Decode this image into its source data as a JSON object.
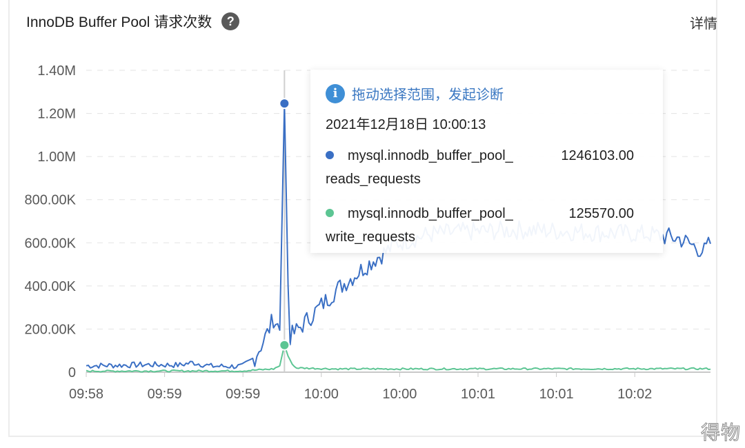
{
  "panel": {
    "title": "InnoDB Buffer Pool 请求次数",
    "help_icon": "question-circle-icon",
    "detail_link": "详情"
  },
  "tooltip": {
    "hint_icon": "info-circle-icon",
    "hint": "拖动选择范围，发起诊断",
    "time": "2021年12月18日 10:00:13",
    "rows": [
      {
        "name_line1": "mysql.innodb_buffer_pool_",
        "name_line2": "reads_requests",
        "value": "1246103.00",
        "color": "#3a6fc4"
      },
      {
        "name_line1": "mysql.innodb_buffer_pool_",
        "name_line2": "write_requests",
        "value": "125570.00",
        "color": "#5cc593"
      }
    ]
  },
  "watermark": "得物",
  "chart_data": {
    "type": "line",
    "title": "InnoDB Buffer Pool 请求次数",
    "xlabel": "",
    "ylabel": "",
    "ylim": [
      0,
      1400000
    ],
    "yticks": [
      "0",
      "200.00K",
      "400.00K",
      "600.00K",
      "800.00K",
      "1.00M",
      "1.20M",
      "1.40M"
    ],
    "ytick_values": [
      0,
      200000,
      400000,
      600000,
      800000,
      1000000,
      1200000,
      1400000
    ],
    "xticks": [
      "09:58",
      "09:59",
      "09:59",
      "10:00",
      "10:00",
      "10:01",
      "10:01",
      "10:02"
    ],
    "grid": "horizontal dashed",
    "legend": "none (tooltip shown)",
    "hover_index": 0.3175,
    "series": [
      {
        "name": "mysql.innodb_buffer_pool_reads_requests",
        "color": "#3a6fc4",
        "keypoints": [
          [
            0.0,
            30000
          ],
          [
            0.05,
            32000
          ],
          [
            0.1,
            35000
          ],
          [
            0.15,
            33000
          ],
          [
            0.17,
            45000
          ],
          [
            0.2,
            28000
          ],
          [
            0.25,
            27000
          ],
          [
            0.27,
            70000
          ],
          [
            0.29,
            180000
          ],
          [
            0.3,
            250000
          ],
          [
            0.31,
            200000
          ],
          [
            0.3175,
            1246103
          ],
          [
            0.325,
            160000
          ],
          [
            0.34,
            200000
          ],
          [
            0.36,
            260000
          ],
          [
            0.4,
            380000
          ],
          [
            0.43,
            450000
          ],
          [
            0.46,
            520000
          ],
          [
            0.5,
            600000
          ],
          [
            0.55,
            640000
          ],
          [
            0.6,
            650000
          ],
          [
            0.7,
            660000
          ],
          [
            0.8,
            650000
          ],
          [
            0.9,
            640000
          ],
          [
            0.95,
            620000
          ],
          [
            0.99,
            560000
          ],
          [
            1.0,
            600000
          ]
        ],
        "noise": 45000
      },
      {
        "name": "mysql.innodb_buffer_pool_write_requests",
        "color": "#5cc593",
        "keypoints": [
          [
            0.0,
            5000
          ],
          [
            0.25,
            6000
          ],
          [
            0.3,
            15000
          ],
          [
            0.31,
            30000
          ],
          [
            0.3175,
            125570
          ],
          [
            0.325,
            60000
          ],
          [
            0.335,
            20000
          ],
          [
            0.4,
            15000
          ],
          [
            1.0,
            16000
          ]
        ],
        "noise": 4000
      }
    ]
  }
}
